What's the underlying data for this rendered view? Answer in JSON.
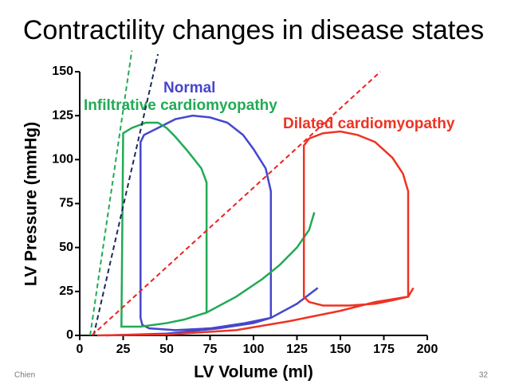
{
  "chart_data": {
    "type": "line",
    "title": "Contractility changes in disease states",
    "x_label": "LV Volume (ml)",
    "y_label": "LV Pressure (mmHg)",
    "xlim": [
      0,
      200
    ],
    "ylim": [
      0,
      150
    ],
    "xticks": [
      0,
      25,
      50,
      75,
      100,
      125,
      150,
      175,
      200
    ],
    "yticks": [
      0,
      25,
      50,
      75,
      100,
      125,
      150
    ],
    "series": [
      {
        "name": "Normal",
        "color": "#4646cc",
        "x": [
          15,
          50,
          80,
          100,
          110,
          110,
          107,
          100,
          94,
          85,
          75,
          65,
          55,
          45,
          37,
          35,
          35,
          36,
          40,
          55,
          75,
          95,
          110,
          125,
          137
        ],
        "values": [
          0,
          1,
          4,
          7,
          10,
          82,
          95,
          106,
          114,
          121,
          124,
          125,
          123,
          118,
          114,
          110,
          10,
          6,
          4,
          3,
          4,
          7,
          10,
          18,
          27
        ]
      },
      {
        "name": "Infiltrative cardiomyopathy",
        "color": "#22aa55",
        "x": [
          135,
          132,
          125,
          115,
          105,
          90,
          73,
          73,
          70,
          62,
          55,
          50,
          45,
          38,
          30,
          25,
          24,
          25,
          35,
          50,
          60,
          73
        ],
        "values": [
          70,
          60,
          50,
          40,
          32,
          22,
          13,
          87,
          95,
          105,
          113,
          118,
          121,
          121,
          118,
          115,
          5,
          5,
          5,
          7,
          9,
          13
        ]
      },
      {
        "name": "Dilated cardiomyopathy",
        "color": "#ee3322",
        "x": [
          10,
          50,
          90,
          120,
          150,
          170,
          189,
          189,
          186,
          180,
          170,
          160,
          150,
          140,
          132,
          129,
          129,
          132,
          140,
          155,
          170,
          180,
          189,
          192
        ],
        "values": [
          0,
          0.5,
          3,
          8,
          14,
          19,
          22,
          82,
          92,
          101,
          110,
          114,
          116,
          115,
          112,
          108,
          22,
          19,
          17,
          17,
          18,
          20,
          22,
          27
        ]
      },
      {
        "color": "#1a2a5a",
        "dashed": true,
        "x": [
          8,
          45
        ],
        "values": [
          0,
          160
        ]
      },
      {
        "color": "#22aa55",
        "dashed": true,
        "x": [
          6,
          30
        ],
        "values": [
          0,
          162
        ]
      },
      {
        "color": "#ee2222",
        "dashed": true,
        "x": [
          7,
          173
        ],
        "values": [
          0,
          150
        ]
      }
    ]
  },
  "footer": {
    "author": "Chien",
    "page": "32"
  }
}
